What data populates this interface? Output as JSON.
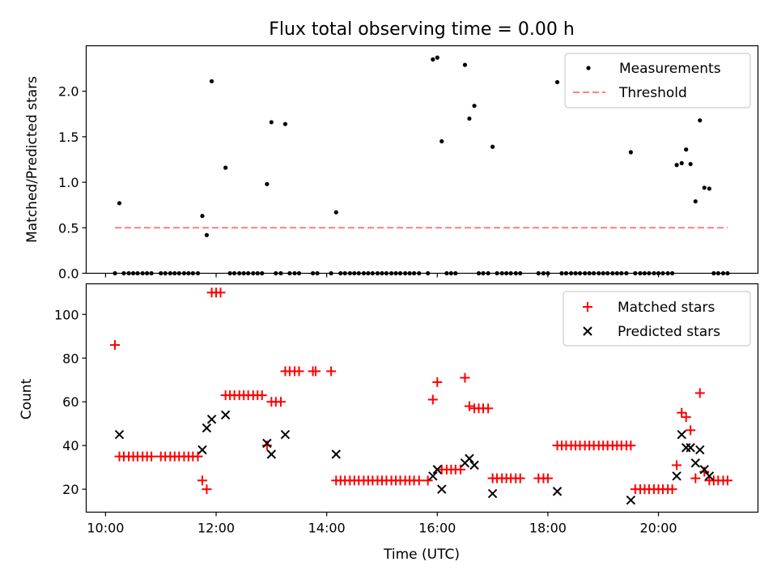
{
  "title": "Flux total observing time = 0.00 h",
  "colors": {
    "measurement": "#000000",
    "threshold": "#ff7f7f",
    "matched": "#ff0000",
    "predicted": "#000000"
  },
  "top": {
    "ylabel": "Matched/Predicted stars",
    "legend": {
      "measurements": "Measurements",
      "threshold": "Threshold"
    },
    "yticks": [
      "0.0",
      "0.5",
      "1.0",
      "1.5",
      "2.0"
    ]
  },
  "bottom": {
    "ylabel": "Count",
    "xlabel": "Time (UTC)",
    "legend": {
      "matched": "Matched stars",
      "predicted": "Predicted stars"
    },
    "yticks": [
      "20",
      "40",
      "60",
      "80",
      "100"
    ],
    "xticks": [
      "10:00",
      "12:00",
      "14:00",
      "16:00",
      "18:00",
      "20:00"
    ]
  },
  "chart_data": [
    {
      "type": "scatter",
      "title": "Flux total observing time = 0.00 h",
      "ylabel": "Matched/Predicted stars",
      "xlim": [
        9.65,
        21.8
      ],
      "ylim": [
        0,
        2.5
      ],
      "legend_position": "top-right",
      "threshold": {
        "name": "Threshold",
        "value": 0.5,
        "x_range": [
          10.17,
          21.25
        ],
        "style": "dashed"
      },
      "series": [
        {
          "name": "Measurements",
          "points": [
            [
              10.25,
              0.77
            ],
            [
              11.75,
              0.63
            ],
            [
              11.83,
              0.42
            ],
            [
              11.92,
              2.11
            ],
            [
              12.17,
              1.16
            ],
            [
              12.92,
              0.98
            ],
            [
              13.0,
              1.66
            ],
            [
              13.25,
              1.64
            ],
            [
              14.17,
              0.67
            ],
            [
              15.92,
              2.35
            ],
            [
              16.0,
              2.37
            ],
            [
              16.08,
              1.45
            ],
            [
              16.5,
              2.29
            ],
            [
              16.58,
              1.7
            ],
            [
              16.67,
              1.84
            ],
            [
              17.0,
              1.39
            ],
            [
              18.17,
              2.1
            ],
            [
              19.5,
              1.33
            ],
            [
              20.33,
              1.19
            ],
            [
              20.42,
              1.21
            ],
            [
              20.5,
              1.36
            ],
            [
              20.58,
              1.2
            ],
            [
              20.67,
              0.79
            ],
            [
              20.75,
              1.68
            ],
            [
              20.83,
              0.94
            ],
            [
              20.92,
              0.93
            ]
          ],
          "zero_x": [
            10.17,
            10.33,
            10.42,
            10.5,
            10.58,
            10.67,
            10.75,
            10.83,
            11.0,
            11.08,
            11.17,
            11.25,
            11.33,
            11.42,
            11.5,
            11.58,
            11.67,
            12.25,
            12.33,
            12.42,
            12.5,
            12.58,
            12.67,
            12.75,
            12.83,
            13.08,
            13.17,
            13.33,
            13.42,
            13.5,
            13.75,
            13.83,
            14.08,
            14.25,
            14.33,
            14.42,
            14.5,
            14.58,
            14.67,
            14.75,
            14.83,
            14.92,
            15.0,
            15.08,
            15.17,
            15.25,
            15.33,
            15.42,
            15.5,
            15.58,
            15.67,
            15.83,
            16.17,
            16.25,
            16.33,
            16.75,
            16.83,
            16.92,
            17.08,
            17.17,
            17.25,
            17.33,
            17.42,
            17.5,
            17.83,
            17.92,
            18.0,
            18.25,
            18.33,
            18.42,
            18.5,
            18.58,
            18.67,
            18.75,
            18.83,
            18.92,
            19.0,
            19.08,
            19.17,
            19.25,
            19.33,
            19.42,
            19.58,
            19.67,
            19.75,
            19.83,
            19.92,
            20.0,
            20.08,
            20.17,
            20.25,
            21.0,
            21.08,
            21.17,
            21.25
          ]
        }
      ]
    },
    {
      "type": "scatter",
      "xlabel": "Time (UTC)",
      "ylabel": "Count",
      "xlim": [
        9.65,
        21.8
      ],
      "ylim": [
        9.5,
        114
      ],
      "legend_position": "top-right",
      "series": [
        {
          "name": "Matched stars",
          "marker": "plus",
          "points": [
            [
              10.17,
              86
            ],
            [
              10.25,
              35
            ],
            [
              10.33,
              35
            ],
            [
              10.42,
              35
            ],
            [
              10.5,
              35
            ],
            [
              10.58,
              35
            ],
            [
              10.67,
              35
            ],
            [
              10.75,
              35
            ],
            [
              10.83,
              35
            ],
            [
              11.0,
              35
            ],
            [
              11.08,
              35
            ],
            [
              11.17,
              35
            ],
            [
              11.25,
              35
            ],
            [
              11.33,
              35
            ],
            [
              11.42,
              35
            ],
            [
              11.5,
              35
            ],
            [
              11.58,
              35
            ],
            [
              11.67,
              35
            ],
            [
              11.75,
              24
            ],
            [
              11.83,
              20
            ],
            [
              11.92,
              110
            ],
            [
              12.0,
              110
            ],
            [
              12.08,
              110
            ],
            [
              12.17,
              63
            ],
            [
              12.25,
              63
            ],
            [
              12.33,
              63
            ],
            [
              12.42,
              63
            ],
            [
              12.5,
              63
            ],
            [
              12.58,
              63
            ],
            [
              12.67,
              63
            ],
            [
              12.75,
              63
            ],
            [
              12.83,
              63
            ],
            [
              12.92,
              40
            ],
            [
              13.0,
              60
            ],
            [
              13.08,
              60
            ],
            [
              13.17,
              60
            ],
            [
              13.25,
              74
            ],
            [
              13.33,
              74
            ],
            [
              13.42,
              74
            ],
            [
              13.5,
              74
            ],
            [
              13.75,
              74
            ],
            [
              13.8,
              74
            ],
            [
              14.08,
              74
            ],
            [
              14.17,
              24
            ],
            [
              14.25,
              24
            ],
            [
              14.33,
              24
            ],
            [
              14.42,
              24
            ],
            [
              14.5,
              24
            ],
            [
              14.58,
              24
            ],
            [
              14.67,
              24
            ],
            [
              14.75,
              24
            ],
            [
              14.83,
              24
            ],
            [
              14.92,
              24
            ],
            [
              15.0,
              24
            ],
            [
              15.08,
              24
            ],
            [
              15.17,
              24
            ],
            [
              15.25,
              24
            ],
            [
              15.33,
              24
            ],
            [
              15.42,
              24
            ],
            [
              15.5,
              24
            ],
            [
              15.58,
              24
            ],
            [
              15.67,
              24
            ],
            [
              15.83,
              24
            ],
            [
              15.92,
              61
            ],
            [
              16.0,
              69
            ],
            [
              16.08,
              29
            ],
            [
              16.17,
              29
            ],
            [
              16.25,
              29
            ],
            [
              16.33,
              29
            ],
            [
              16.42,
              29
            ],
            [
              16.5,
              71
            ],
            [
              16.58,
              58
            ],
            [
              16.67,
              57
            ],
            [
              16.75,
              57
            ],
            [
              16.83,
              57
            ],
            [
              16.92,
              57
            ],
            [
              17.0,
              25
            ],
            [
              17.08,
              25
            ],
            [
              17.17,
              25
            ],
            [
              17.25,
              25
            ],
            [
              17.33,
              25
            ],
            [
              17.42,
              25
            ],
            [
              17.5,
              25
            ],
            [
              17.83,
              25
            ],
            [
              17.92,
              25
            ],
            [
              18.0,
              25
            ],
            [
              18.17,
              40
            ],
            [
              18.25,
              40
            ],
            [
              18.33,
              40
            ],
            [
              18.42,
              40
            ],
            [
              18.5,
              40
            ],
            [
              18.58,
              40
            ],
            [
              18.67,
              40
            ],
            [
              18.75,
              40
            ],
            [
              18.83,
              40
            ],
            [
              18.92,
              40
            ],
            [
              19.0,
              40
            ],
            [
              19.08,
              40
            ],
            [
              19.17,
              40
            ],
            [
              19.25,
              40
            ],
            [
              19.33,
              40
            ],
            [
              19.42,
              40
            ],
            [
              19.5,
              40
            ],
            [
              19.58,
              20
            ],
            [
              19.67,
              20
            ],
            [
              19.75,
              20
            ],
            [
              19.83,
              20
            ],
            [
              19.92,
              20
            ],
            [
              20.0,
              20
            ],
            [
              20.08,
              20
            ],
            [
              20.17,
              20
            ],
            [
              20.25,
              20
            ],
            [
              20.33,
              31
            ],
            [
              20.42,
              55
            ],
            [
              20.5,
              53
            ],
            [
              20.58,
              47
            ],
            [
              20.67,
              25
            ],
            [
              20.75,
              64
            ],
            [
              20.83,
              28
            ],
            [
              20.92,
              24
            ],
            [
              21.0,
              24
            ],
            [
              21.08,
              24
            ],
            [
              21.17,
              24
            ],
            [
              21.25,
              24
            ]
          ]
        },
        {
          "name": "Predicted stars",
          "marker": "x",
          "points": [
            [
              10.25,
              45
            ],
            [
              11.75,
              38
            ],
            [
              11.83,
              48
            ],
            [
              11.92,
              52
            ],
            [
              12.17,
              54
            ],
            [
              12.92,
              41
            ],
            [
              13.0,
              36
            ],
            [
              13.25,
              45
            ],
            [
              14.17,
              36
            ],
            [
              15.92,
              26
            ],
            [
              16.0,
              29
            ],
            [
              16.08,
              20
            ],
            [
              16.5,
              32
            ],
            [
              16.58,
              34
            ],
            [
              16.67,
              31
            ],
            [
              17.0,
              18
            ],
            [
              18.17,
              19
            ],
            [
              19.5,
              15
            ],
            [
              20.33,
              26
            ],
            [
              20.42,
              45
            ],
            [
              20.5,
              39
            ],
            [
              20.58,
              39
            ],
            [
              20.67,
              32
            ],
            [
              20.75,
              38
            ],
            [
              20.83,
              29
            ],
            [
              20.92,
              26
            ]
          ]
        }
      ]
    }
  ]
}
